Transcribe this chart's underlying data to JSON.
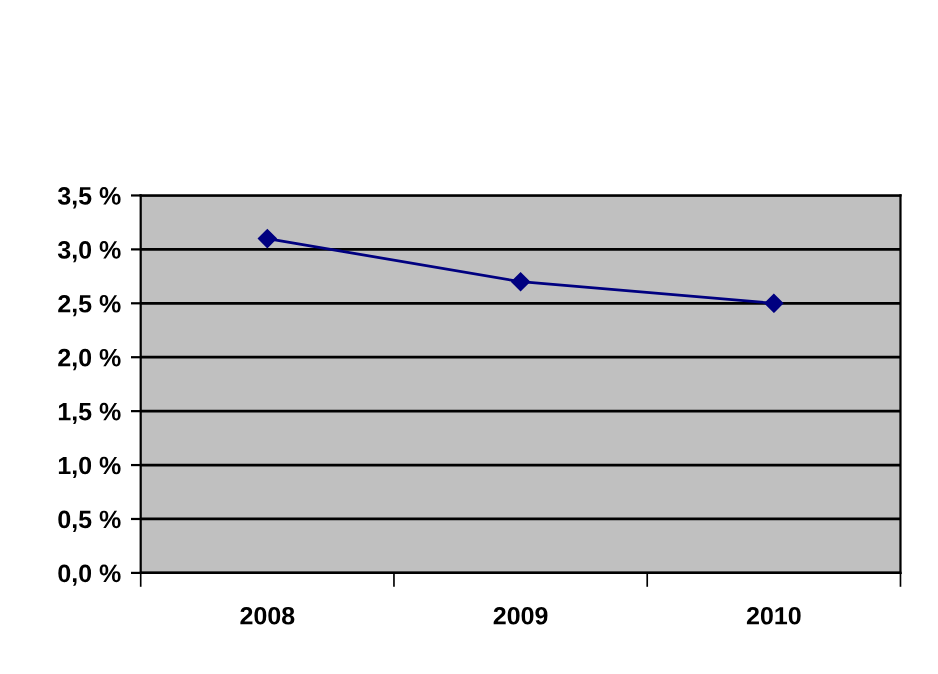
{
  "chart_data": {
    "type": "line",
    "categories": [
      "2008",
      "2009",
      "2010"
    ],
    "series": [
      {
        "color": "#000080",
        "values": [
          3.1,
          2.7,
          2.5
        ]
      }
    ],
    "ylim": [
      0,
      3.5
    ],
    "yticks": [
      {
        "value": 0,
        "label": "0,0 %"
      },
      {
        "value": 0.5,
        "label": "0,5 %"
      },
      {
        "value": 1.0,
        "label": "1,0 %"
      },
      {
        "value": 1.5,
        "label": "1,5 %"
      },
      {
        "value": 2.0,
        "label": "2,0 %"
      },
      {
        "value": 2.5,
        "label": "2,5 %"
      },
      {
        "value": 3.0,
        "label": "3,0 %"
      },
      {
        "value": 3.5,
        "label": "3,5 %"
      }
    ],
    "grid": "y",
    "marker": "diamond",
    "line_style": "solid",
    "legend": false
  }
}
